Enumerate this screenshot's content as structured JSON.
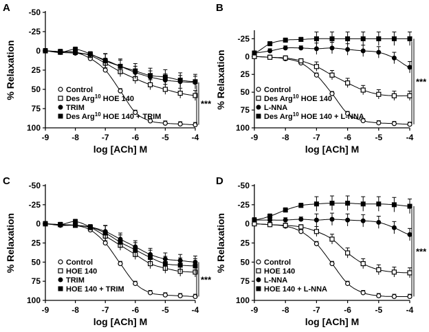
{
  "chart_data": [
    {
      "type": "scatter",
      "panel": "A",
      "xlabel": "log [ACh] M",
      "ylabel": "% Relaxation",
      "xlim": [
        -9,
        -4
      ],
      "ylim": [
        -50,
        100
      ],
      "y_inverted": true,
      "xticks": [
        -9,
        -8,
        -7,
        -6,
        -5,
        -4
      ],
      "yticks": [
        -50,
        -25,
        0,
        25,
        50,
        75,
        100
      ],
      "significance": "***",
      "sig_from_series": [
        1,
        2
      ],
      "x": [
        -9,
        -8.5,
        -8,
        -7.5,
        -7,
        -6.5,
        -6,
        -5.5,
        -5,
        -4.5,
        -4
      ],
      "series": [
        {
          "name": "Control",
          "marker": "circle-open",
          "values": [
            0,
            1,
            2,
            10,
            25,
            52,
            80,
            91,
            94,
            95,
            96
          ]
        },
        {
          "name": "Des Arg10 HOE 140",
          "marker": "square-open",
          "values": [
            0,
            1,
            2,
            6,
            16,
            27,
            36,
            44,
            50,
            55,
            58
          ]
        },
        {
          "name": "TRIM",
          "marker": "circle-filled",
          "values": [
            0,
            2,
            3,
            5,
            12,
            20,
            28,
            34,
            38,
            40,
            41
          ]
        },
        {
          "name": "Des Arg10 HOE 140 + TRIM",
          "marker": "square-filled",
          "values": [
            0,
            2,
            -2,
            4,
            13,
            20,
            26,
            32,
            34,
            38,
            40
          ]
        }
      ],
      "legend": [
        "Control",
        "Des Arg",
        "10",
        " HOE 140",
        "TRIM",
        "Des Arg",
        "10",
        " HOE 140 + TRIM"
      ]
    },
    {
      "type": "scatter",
      "panel": "B",
      "xlabel": "log [ACh] M",
      "ylabel": "% Relaxation",
      "xlim": [
        -9,
        -4
      ],
      "ylim": [
        -35,
        100
      ],
      "y_inverted": true,
      "xticks": [
        -9,
        -8,
        -7,
        -6,
        -5,
        -4
      ],
      "yticks": [
        -25,
        0,
        25,
        50,
        75,
        100
      ],
      "significance": "***",
      "sig_from_series": [
        2,
        3
      ],
      "x": [
        -9,
        -8.5,
        -8,
        -7.5,
        -7,
        -6.5,
        -6,
        -5.5,
        -5,
        -4.5,
        -4
      ],
      "series": [
        {
          "name": "Control",
          "marker": "circle-open",
          "values": [
            0,
            1,
            3,
            9,
            26,
            52,
            80,
            90,
            93,
            94,
            95
          ]
        },
        {
          "name": "Des Arg10 HOE 140",
          "marker": "square-open",
          "values": [
            0,
            1,
            2,
            6,
            14,
            26,
            37,
            47,
            53,
            55,
            55
          ]
        },
        {
          "name": "L-NNA",
          "marker": "circle-filled",
          "values": [
            -5,
            -8,
            -12,
            -12,
            -11,
            -12,
            -10,
            -8,
            -6,
            2,
            15
          ]
        },
        {
          "name": "Des Arg10 HOE 140 + L-NNA",
          "marker": "square-filled",
          "values": [
            -5,
            -18,
            -23,
            -24,
            -25,
            -25,
            -25,
            -25,
            -25,
            -25,
            -25
          ]
        }
      ],
      "legend": [
        "Control",
        "Des Arg",
        "10",
        " HOE 140",
        "L-NNA",
        "Des Arg",
        "10",
        " HOE 140 + L-NNA"
      ]
    },
    {
      "type": "scatter",
      "panel": "C",
      "xlabel": "log [ACh] M",
      "ylabel": "% Relaxation",
      "xlim": [
        -9,
        -4
      ],
      "ylim": [
        -50,
        100
      ],
      "y_inverted": true,
      "xticks": [
        -9,
        -8,
        -7,
        -6,
        -5,
        -4
      ],
      "yticks": [
        -50,
        -25,
        0,
        25,
        50,
        75,
        100
      ],
      "significance": "***",
      "sig_from_series": [
        1,
        2
      ],
      "x": [
        -9,
        -8.5,
        -8,
        -7.5,
        -7,
        -6.5,
        -6,
        -5.5,
        -5,
        -4.5,
        -4
      ],
      "series": [
        {
          "name": "Control",
          "marker": "circle-open",
          "values": [
            0,
            1,
            2,
            8,
            25,
            52,
            78,
            90,
            93,
            94,
            95
          ]
        },
        {
          "name": "HOE 140",
          "marker": "square-open",
          "values": [
            0,
            1,
            2,
            5,
            16,
            28,
            40,
            52,
            58,
            62,
            63
          ]
        },
        {
          "name": "TRIM",
          "marker": "circle-filled",
          "values": [
            0,
            2,
            2,
            4,
            10,
            20,
            30,
            40,
            46,
            48,
            50
          ]
        },
        {
          "name": "HOE 140 + TRIM",
          "marker": "square-filled",
          "values": [
            0,
            1,
            -3,
            4,
            12,
            24,
            34,
            44,
            52,
            54,
            55
          ]
        }
      ],
      "legend": [
        "Control",
        "HOE 140",
        "TRIM",
        "HOE 140 + TRIM"
      ]
    },
    {
      "type": "scatter",
      "panel": "D",
      "xlabel": "log [ACh] M",
      "ylabel": "% Relaxation",
      "xlim": [
        -9,
        -4
      ],
      "ylim": [
        -50,
        100
      ],
      "y_inverted": true,
      "xticks": [
        -9,
        -8,
        -7,
        -6,
        -5,
        -4
      ],
      "yticks": [
        -50,
        -25,
        0,
        25,
        50,
        75,
        100
      ],
      "significance": "***",
      "sig_from_series": [
        2,
        3
      ],
      "x": [
        -9,
        -8.5,
        -8,
        -7.5,
        -7,
        -6.5,
        -6,
        -5.5,
        -5,
        -4.5,
        -4
      ],
      "series": [
        {
          "name": "Control",
          "marker": "circle-open",
          "values": [
            0,
            1,
            3,
            10,
            26,
            52,
            78,
            90,
            94,
            95,
            95
          ]
        },
        {
          "name": "HOE 140",
          "marker": "square-open",
          "values": [
            0,
            1,
            2,
            4,
            10,
            20,
            38,
            52,
            60,
            63,
            64
          ]
        },
        {
          "name": "L-NNA",
          "marker": "circle-filled",
          "values": [
            -5,
            -5,
            -5,
            -6,
            -5,
            -6,
            -5,
            -4,
            -2,
            5,
            14
          ]
        },
        {
          "name": "HOE 140 + L-NNA",
          "marker": "square-filled",
          "values": [
            -5,
            -10,
            -18,
            -24,
            -26,
            -27,
            -27,
            -26,
            -26,
            -25,
            -23
          ]
        }
      ],
      "legend": [
        "Control",
        "HOE 140",
        "L-NNA",
        "HOE 140 + L-NNA"
      ]
    }
  ]
}
